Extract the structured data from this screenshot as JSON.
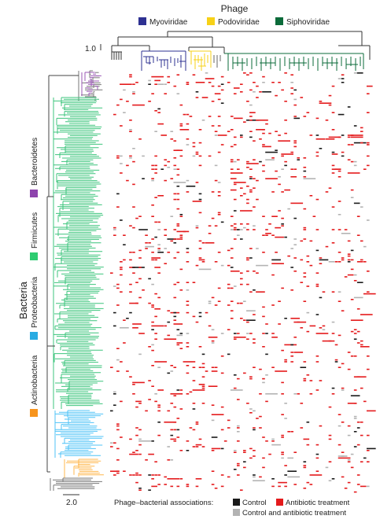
{
  "phage": {
    "title": "Phage",
    "families": [
      {
        "name": "Myoviridae",
        "color": "#2e3192"
      },
      {
        "name": "Podoviridae",
        "color": "#f7d117"
      },
      {
        "name": "Siphoviridae",
        "color": "#0b6b3a"
      }
    ],
    "scale_label": "1.0"
  },
  "bacteria": {
    "title": "Bacteria",
    "phyla": [
      {
        "name": "Bacteroidetes",
        "color": "#8e44ad"
      },
      {
        "name": "Firmicutes",
        "color": "#2ecc71"
      },
      {
        "name": "Proteobacteria",
        "color": "#29abe2"
      },
      {
        "name": "Actinobacteria",
        "color": "#f7941d"
      }
    ],
    "scale_label": "2.0"
  },
  "legend": {
    "title": "Phage–bacterial associations:",
    "items": [
      {
        "label": "Control",
        "color": "#1a1a1a"
      },
      {
        "label": "Antibiotic treatment",
        "color": "#e41a1c"
      },
      {
        "label": "Control and antibiotic treatment",
        "color": "#b3b3b3"
      }
    ]
  }
}
